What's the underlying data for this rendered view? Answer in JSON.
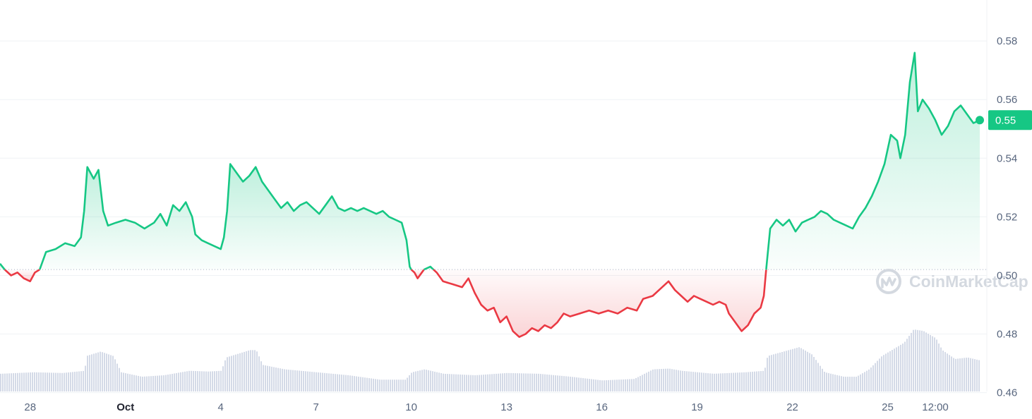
{
  "watermark": {
    "text": "CoinMarketCap",
    "icon": "coinmarketcap-logo-icon"
  },
  "colors": {
    "up": "#16c784",
    "down": "#ea3943",
    "grid": "#eff2f5",
    "baseline": "#a6b0c3",
    "volume": "#cfd6e4",
    "text": "#58667e"
  },
  "chart_data": {
    "type": "area",
    "x_unit": "days (0 = Oct 1)",
    "xlim": [
      -3.95,
      26.9
    ],
    "ylim": [
      0.451,
      0.594
    ],
    "baseline": 0.502,
    "y_ticks": [
      {
        "value": 0.46,
        "label": "0.46"
      },
      {
        "value": 0.48,
        "label": "0.48"
      },
      {
        "value": 0.5,
        "label": "0.50"
      },
      {
        "value": 0.52,
        "label": "0.52"
      },
      {
        "value": 0.54,
        "label": "0.54"
      },
      {
        "value": 0.56,
        "label": "0.56"
      },
      {
        "value": 0.58,
        "label": "0.58"
      }
    ],
    "x_ticks": [
      {
        "value": -3,
        "label": "28",
        "bold": false
      },
      {
        "value": 0,
        "label": "Oct",
        "bold": true
      },
      {
        "value": 3,
        "label": "4",
        "bold": false
      },
      {
        "value": 6,
        "label": "7",
        "bold": false
      },
      {
        "value": 9,
        "label": "10",
        "bold": false
      },
      {
        "value": 12,
        "label": "13",
        "bold": false
      },
      {
        "value": 15,
        "label": "16",
        "bold": false
      },
      {
        "value": 18,
        "label": "19",
        "bold": false
      },
      {
        "value": 21,
        "label": "22",
        "bold": false
      },
      {
        "value": 24,
        "label": "25",
        "bold": false
      },
      {
        "value": 25.5,
        "label": "12:00",
        "bold": false
      }
    ],
    "current_price_label": "0.55",
    "price": [
      [
        -3.95,
        0.504
      ],
      [
        -3.8,
        0.502
      ],
      [
        -3.6,
        0.5
      ],
      [
        -3.4,
        0.501
      ],
      [
        -3.2,
        0.499
      ],
      [
        -3.0,
        0.498
      ],
      [
        -2.85,
        0.501
      ],
      [
        -2.7,
        0.502
      ],
      [
        -2.5,
        0.508
      ],
      [
        -2.2,
        0.509
      ],
      [
        -1.9,
        0.511
      ],
      [
        -1.6,
        0.51
      ],
      [
        -1.4,
        0.513
      ],
      [
        -1.3,
        0.522
      ],
      [
        -1.2,
        0.537
      ],
      [
        -1.0,
        0.533
      ],
      [
        -0.85,
        0.536
      ],
      [
        -0.7,
        0.522
      ],
      [
        -0.55,
        0.517
      ],
      [
        -0.3,
        0.518
      ],
      [
        0.0,
        0.519
      ],
      [
        0.3,
        0.518
      ],
      [
        0.6,
        0.516
      ],
      [
        0.9,
        0.518
      ],
      [
        1.1,
        0.521
      ],
      [
        1.3,
        0.517
      ],
      [
        1.5,
        0.524
      ],
      [
        1.7,
        0.522
      ],
      [
        1.9,
        0.525
      ],
      [
        2.1,
        0.52
      ],
      [
        2.2,
        0.514
      ],
      [
        2.4,
        0.512
      ],
      [
        2.6,
        0.511
      ],
      [
        2.8,
        0.51
      ],
      [
        3.0,
        0.509
      ],
      [
        3.1,
        0.513
      ],
      [
        3.2,
        0.522
      ],
      [
        3.3,
        0.538
      ],
      [
        3.5,
        0.535
      ],
      [
        3.7,
        0.532
      ],
      [
        3.9,
        0.534
      ],
      [
        4.1,
        0.537
      ],
      [
        4.3,
        0.532
      ],
      [
        4.5,
        0.529
      ],
      [
        4.7,
        0.526
      ],
      [
        4.9,
        0.523
      ],
      [
        5.1,
        0.525
      ],
      [
        5.3,
        0.522
      ],
      [
        5.5,
        0.524
      ],
      [
        5.7,
        0.525
      ],
      [
        5.9,
        0.523
      ],
      [
        6.1,
        0.521
      ],
      [
        6.3,
        0.524
      ],
      [
        6.5,
        0.527
      ],
      [
        6.7,
        0.523
      ],
      [
        6.9,
        0.522
      ],
      [
        7.1,
        0.523
      ],
      [
        7.3,
        0.522
      ],
      [
        7.5,
        0.523
      ],
      [
        7.7,
        0.522
      ],
      [
        7.9,
        0.521
      ],
      [
        8.1,
        0.522
      ],
      [
        8.3,
        0.52
      ],
      [
        8.5,
        0.519
      ],
      [
        8.7,
        0.518
      ],
      [
        8.85,
        0.512
      ],
      [
        8.95,
        0.503
      ],
      [
        9.0,
        0.502
      ],
      [
        9.1,
        0.501
      ],
      [
        9.2,
        0.499
      ],
      [
        9.4,
        0.502
      ],
      [
        9.6,
        0.503
      ],
      [
        9.8,
        0.501
      ],
      [
        10.0,
        0.498
      ],
      [
        10.3,
        0.497
      ],
      [
        10.6,
        0.496
      ],
      [
        10.8,
        0.499
      ],
      [
        11.0,
        0.494
      ],
      [
        11.2,
        0.49
      ],
      [
        11.4,
        0.488
      ],
      [
        11.6,
        0.489
      ],
      [
        11.8,
        0.484
      ],
      [
        12.0,
        0.486
      ],
      [
        12.2,
        0.481
      ],
      [
        12.4,
        0.479
      ],
      [
        12.6,
        0.48
      ],
      [
        12.8,
        0.482
      ],
      [
        13.0,
        0.481
      ],
      [
        13.2,
        0.483
      ],
      [
        13.4,
        0.482
      ],
      [
        13.6,
        0.484
      ],
      [
        13.8,
        0.487
      ],
      [
        14.0,
        0.486
      ],
      [
        14.3,
        0.487
      ],
      [
        14.6,
        0.488
      ],
      [
        14.9,
        0.487
      ],
      [
        15.2,
        0.488
      ],
      [
        15.5,
        0.487
      ],
      [
        15.8,
        0.489
      ],
      [
        16.1,
        0.488
      ],
      [
        16.3,
        0.492
      ],
      [
        16.6,
        0.493
      ],
      [
        16.9,
        0.496
      ],
      [
        17.1,
        0.498
      ],
      [
        17.3,
        0.495
      ],
      [
        17.5,
        0.493
      ],
      [
        17.7,
        0.491
      ],
      [
        17.9,
        0.493
      ],
      [
        18.1,
        0.492
      ],
      [
        18.3,
        0.491
      ],
      [
        18.5,
        0.49
      ],
      [
        18.7,
        0.491
      ],
      [
        18.9,
        0.49
      ],
      [
        19.0,
        0.487
      ],
      [
        19.2,
        0.484
      ],
      [
        19.4,
        0.481
      ],
      [
        19.6,
        0.483
      ],
      [
        19.8,
        0.487
      ],
      [
        20.0,
        0.489
      ],
      [
        20.1,
        0.493
      ],
      [
        20.2,
        0.505
      ],
      [
        20.3,
        0.516
      ],
      [
        20.5,
        0.519
      ],
      [
        20.7,
        0.517
      ],
      [
        20.9,
        0.519
      ],
      [
        21.1,
        0.515
      ],
      [
        21.3,
        0.518
      ],
      [
        21.5,
        0.519
      ],
      [
        21.7,
        0.52
      ],
      [
        21.9,
        0.522
      ],
      [
        22.1,
        0.521
      ],
      [
        22.3,
        0.519
      ],
      [
        22.5,
        0.518
      ],
      [
        22.7,
        0.517
      ],
      [
        22.9,
        0.516
      ],
      [
        23.1,
        0.52
      ],
      [
        23.3,
        0.523
      ],
      [
        23.5,
        0.527
      ],
      [
        23.7,
        0.532
      ],
      [
        23.9,
        0.538
      ],
      [
        24.1,
        0.548
      ],
      [
        24.3,
        0.546
      ],
      [
        24.4,
        0.54
      ],
      [
        24.55,
        0.548
      ],
      [
        24.7,
        0.566
      ],
      [
        24.85,
        0.576
      ],
      [
        24.95,
        0.556
      ],
      [
        25.1,
        0.56
      ],
      [
        25.3,
        0.557
      ],
      [
        25.5,
        0.553
      ],
      [
        25.7,
        0.548
      ],
      [
        25.9,
        0.551
      ],
      [
        26.1,
        0.556
      ],
      [
        26.3,
        0.558
      ],
      [
        26.5,
        0.555
      ],
      [
        26.7,
        0.552
      ],
      [
        26.9,
        0.553
      ]
    ],
    "volume": [
      [
        -3.95,
        1.2
      ],
      [
        -2.9,
        1.3
      ],
      [
        -2.0,
        1.25
      ],
      [
        -1.3,
        1.4
      ],
      [
        -1.25,
        2.4
      ],
      [
        -0.8,
        2.7
      ],
      [
        -0.4,
        2.4
      ],
      [
        -0.15,
        1.3
      ],
      [
        0.5,
        1.0
      ],
      [
        1.2,
        1.1
      ],
      [
        2.0,
        1.4
      ],
      [
        2.6,
        1.35
      ],
      [
        3.0,
        1.4
      ],
      [
        3.15,
        2.3
      ],
      [
        3.9,
        2.8
      ],
      [
        4.1,
        2.8
      ],
      [
        4.3,
        1.8
      ],
      [
        5.0,
        1.5
      ],
      [
        6.0,
        1.3
      ],
      [
        7.0,
        1.1
      ],
      [
        8.0,
        0.8
      ],
      [
        8.8,
        0.8
      ],
      [
        9.0,
        1.3
      ],
      [
        9.4,
        1.5
      ],
      [
        10.0,
        1.2
      ],
      [
        11.0,
        1.1
      ],
      [
        12.0,
        1.25
      ],
      [
        13.0,
        1.2
      ],
      [
        14.0,
        1.0
      ],
      [
        15.0,
        0.75
      ],
      [
        16.0,
        0.85
      ],
      [
        16.6,
        1.5
      ],
      [
        17.1,
        1.55
      ],
      [
        17.5,
        1.4
      ],
      [
        18.5,
        1.2
      ],
      [
        19.5,
        1.3
      ],
      [
        20.1,
        1.4
      ],
      [
        20.2,
        2.4
      ],
      [
        21.2,
        3.0
      ],
      [
        21.6,
        2.5
      ],
      [
        22.0,
        1.3
      ],
      [
        22.6,
        1.0
      ],
      [
        23.0,
        1.0
      ],
      [
        23.4,
        1.5
      ],
      [
        23.8,
        2.4
      ],
      [
        24.5,
        3.3
      ],
      [
        24.8,
        4.2
      ],
      [
        25.1,
        4.1
      ],
      [
        25.5,
        3.6
      ],
      [
        25.7,
        2.8
      ],
      [
        26.1,
        2.2
      ],
      [
        26.5,
        2.3
      ],
      [
        26.9,
        2.1
      ]
    ],
    "volume_max": 4.2
  }
}
